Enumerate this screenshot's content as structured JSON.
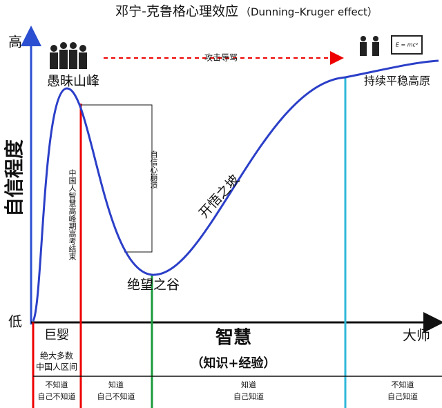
{
  "header": {
    "title": "邓宁-克鲁格心理效应",
    "subtitle": "（Dunning–Kruger effect）"
  },
  "y_axis": {
    "high": "高",
    "low": "低",
    "label": "自信程度"
  },
  "x_axis": {
    "start": "巨婴",
    "label": "智慧",
    "end": "大师",
    "sublabel": "（知识+经验）"
  },
  "curve_labels": {
    "peak": "愚昧山峰",
    "arrow": "攻击辱骂",
    "plateau": "持续平稳高原",
    "slope": "开悟之坡",
    "valley": "绝望之谷"
  },
  "vertical_notes": {
    "red_line": "中国人智慧高峰期高考结束",
    "drop": "自信心崩溃"
  },
  "equation": "E = mc²",
  "region_note": [
    "绝大多数",
    "中国人区间"
  ],
  "zones": [
    {
      "line1": "不知道",
      "line2": "自己不知道"
    },
    {
      "line1": "知道",
      "line2": "自己不知道"
    },
    {
      "line1": "知道",
      "line2": "自己知道"
    },
    {
      "line1": "不知道",
      "line2": "自己知道"
    }
  ]
}
